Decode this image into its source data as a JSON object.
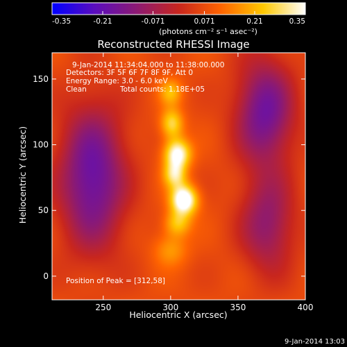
{
  "chart_data": {
    "type": "heatmap",
    "title": "Reconstructed RHESSI Image",
    "xlabel": "Heliocentric X (arcsec)",
    "ylabel": "Heliocentric Y (arcsec)",
    "xlim": [
      212,
      400
    ],
    "ylim": [
      -18,
      170
    ],
    "x_ticks": [
      250,
      300,
      350,
      400
    ],
    "y_ticks": [
      0,
      50,
      100,
      150
    ],
    "colorbar": {
      "min": -0.35,
      "max": 0.35,
      "tick_values": [
        -0.35,
        -0.21,
        -0.071,
        0.071,
        0.21,
        0.35
      ],
      "tick_labels": [
        "-0.35",
        "-0.21",
        "-0.071",
        "0.071",
        "0.21",
        "0.35"
      ],
      "unit_label": "(photons cm⁻² s⁻¹ asec⁻²)",
      "colormap": [
        "#0000ff",
        "#5a0dbe",
        "#8c1a73",
        "#c8261e",
        "#ff6400",
        "#ffc800",
        "#ffffff"
      ]
    },
    "annotations": {
      "time_range": "9-Jan-2014 11:34:04.000 to 11:38:00.000",
      "detectors": "Detectors: 3F 5F 6F 7F 8F 9F, Att 0",
      "energy": "Energy Range: 3.0 - 6.0 keV",
      "method": "Clean",
      "total_counts": "Total counts: 1.18E+05",
      "peak": "Position of Peak = [312,58]"
    },
    "peak": [
      312,
      58
    ],
    "sources": [
      {
        "x": 310,
        "y": 58,
        "amp": 0.35,
        "sx": 7,
        "sy": 8
      },
      {
        "x": 305,
        "y": 93,
        "amp": 0.3,
        "sx": 7,
        "sy": 8
      },
      {
        "x": 303,
        "y": 77,
        "amp": 0.2,
        "sx": 6,
        "sy": 7
      },
      {
        "x": 301,
        "y": 116,
        "amp": 0.2,
        "sx": 6,
        "sy": 8
      },
      {
        "x": 300,
        "y": 140,
        "amp": 0.14,
        "sx": 6,
        "sy": 7
      },
      {
        "x": 305,
        "y": 40,
        "amp": 0.16,
        "sx": 7,
        "sy": 7
      },
      {
        "x": 300,
        "y": 20,
        "amp": 0.11,
        "sx": 9,
        "sy": 9
      }
    ],
    "negative_regions": [
      {
        "x": 242,
        "y": 75,
        "amp": -0.27,
        "sx": 17,
        "sy": 38
      },
      {
        "x": 370,
        "y": 125,
        "amp": -0.25,
        "sx": 15,
        "sy": 28
      },
      {
        "x": 372,
        "y": 40,
        "amp": -0.18,
        "sx": 14,
        "sy": 26
      }
    ],
    "background": 0.07,
    "grid": false
  },
  "footer_timestamp": "9-Jan-2014 13:03"
}
